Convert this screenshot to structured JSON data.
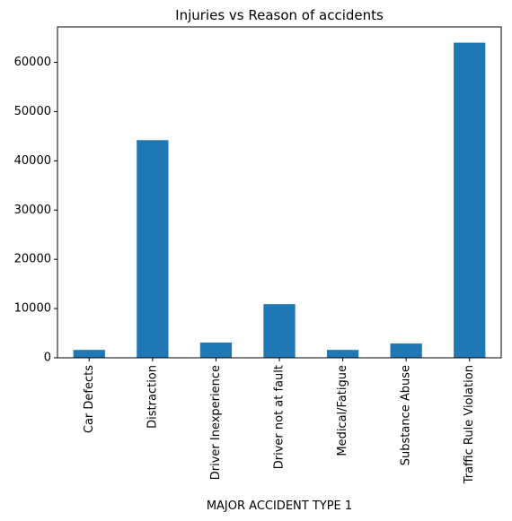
{
  "chart_data": {
    "type": "bar",
    "title": "Injuries vs Reason of accidents",
    "xlabel": "MAJOR ACCIDENT TYPE 1",
    "ylabel": "",
    "categories": [
      "Car Defects",
      "Distraction",
      "Driver Inexperience",
      "Driver not at fault",
      "Medical/Fatigue",
      "Substance Abuse",
      "Traffic Rule Violation"
    ],
    "values": [
      1600,
      44200,
      3100,
      10900,
      1600,
      2900,
      64000
    ],
    "ylim": [
      0,
      67200
    ],
    "yticks": [
      0,
      10000,
      20000,
      30000,
      40000,
      50000,
      60000
    ],
    "ytick_labels": [
      "0",
      "10000",
      "20000",
      "30000",
      "40000",
      "50000",
      "60000"
    ],
    "bar_color": "#1f77b4",
    "grid": false,
    "legend": "none"
  }
}
